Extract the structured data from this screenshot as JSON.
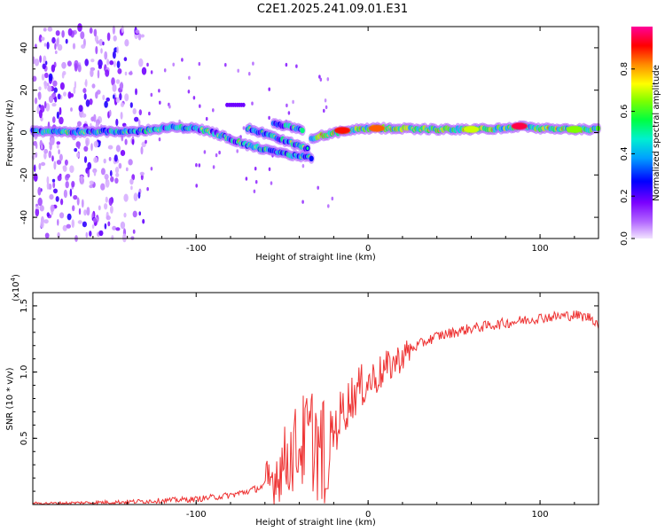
{
  "title": "C2E1.2025.241.09.01.E31",
  "chart_data": [
    {
      "type": "heatmap",
      "xlabel": "Height of straight line (km)",
      "ylabel": "Frequency (Hz)",
      "xlim": [
        -195,
        134
      ],
      "ylim": [
        -50,
        50
      ],
      "xticks": [
        -100,
        0,
        100
      ],
      "xtick_labels": [
        "-100",
        "0",
        "100"
      ],
      "yticks": [
        -40,
        -20,
        0,
        20,
        40
      ],
      "ytick_labels": [
        "-40",
        "-20",
        "0",
        "20",
        "40"
      ],
      "colorbar": {
        "label": "Normalized spectral amplitude",
        "range": [
          0,
          1
        ],
        "ticks": [
          0,
          0.2,
          0.4,
          0.6,
          0.8
        ],
        "tick_labels": [
          "0.0",
          "0.2",
          "0.4",
          "0.6",
          "0.8"
        ],
        "colors": [
          "#f0e0ff",
          "#9933ff",
          "#0000ff",
          "#00ccff",
          "#00ff66",
          "#66ff00",
          "#ffff00",
          "#ff8800",
          "#ff0000",
          "#ff00aa"
        ]
      },
      "noise_region_x": [
        -195,
        -130
      ],
      "ridges": [
        {
          "x": [
            -195,
            -175,
            -155,
            -140,
            -130,
            -120,
            -110,
            -100,
            -90,
            -80,
            -70,
            -60,
            -50,
            -40,
            -33
          ],
          "y": [
            0.5,
            0.5,
            0.5,
            0.3,
            1,
            2,
            2.5,
            2,
            0,
            -3,
            -6,
            -8,
            -10,
            -11,
            -12
          ]
        },
        {
          "x": [
            -70,
            -62,
            -55,
            -48,
            -40,
            -35
          ],
          "y": [
            2,
            0,
            -2,
            -4,
            -6,
            -8
          ]
        },
        {
          "x": [
            -55,
            -48,
            -42,
            -37
          ],
          "y": [
            4,
            3,
            2,
            1
          ]
        },
        {
          "x": [
            -33,
            -25,
            -15,
            -5,
            5,
            20,
            40,
            60,
            80,
            90,
            100,
            110,
            134
          ],
          "y": [
            -3,
            -1,
            0.5,
            1.5,
            2,
            2,
            1.5,
            1.5,
            2,
            3,
            2,
            1.5,
            1.5
          ]
        }
      ],
      "hotspots": [
        {
          "x": -15,
          "y": 1,
          "v": 0.9
        },
        {
          "x": 5,
          "y": 2,
          "v": 0.85
        },
        {
          "x": 88,
          "y": 3,
          "v": 0.95
        },
        {
          "x": 60,
          "y": 1.5,
          "v": 0.7
        },
        {
          "x": 120,
          "y": 1.5,
          "v": 0.65
        }
      ]
    },
    {
      "type": "line",
      "xlabel": "Height of straight line (km)",
      "ylabel": "SNR (10 * v/v)",
      "scale_label": "(x10",
      "scale_exponent": "4",
      "scale_close": ")",
      "xlim": [
        -195,
        134
      ],
      "ylim": [
        0,
        1.6
      ],
      "xticks": [
        -100,
        0,
        100
      ],
      "xtick_labels": [
        "-100",
        "0",
        "100"
      ],
      "yticks": [
        0.5,
        1.0,
        1.5
      ],
      "ytick_labels": [
        "0.5",
        "1.0",
        "1.5"
      ],
      "series": [
        {
          "name": "SNR",
          "color": "#ee3333",
          "x": [
            -195,
            -180,
            -160,
            -140,
            -120,
            -100,
            -80,
            -70,
            -60,
            -55,
            -50,
            -45,
            -40,
            -35,
            -30,
            -28,
            -25,
            -20,
            -15,
            -10,
            -5,
            0,
            5,
            10,
            15,
            20,
            25,
            30,
            35,
            40,
            50,
            60,
            70,
            80,
            90,
            100,
            110,
            120,
            125,
            130,
            134
          ],
          "y": [
            0.01,
            0.01,
            0.015,
            0.02,
            0.03,
            0.04,
            0.07,
            0.1,
            0.14,
            0.2,
            0.3,
            0.38,
            0.45,
            0.5,
            0.5,
            0.35,
            0.4,
            0.55,
            0.7,
            0.8,
            0.88,
            0.92,
            0.97,
            1.02,
            1.07,
            1.12,
            1.17,
            1.21,
            1.24,
            1.27,
            1.3,
            1.33,
            1.35,
            1.37,
            1.39,
            1.41,
            1.42,
            1.43,
            1.42,
            1.41,
            1.36
          ]
        }
      ]
    }
  ]
}
